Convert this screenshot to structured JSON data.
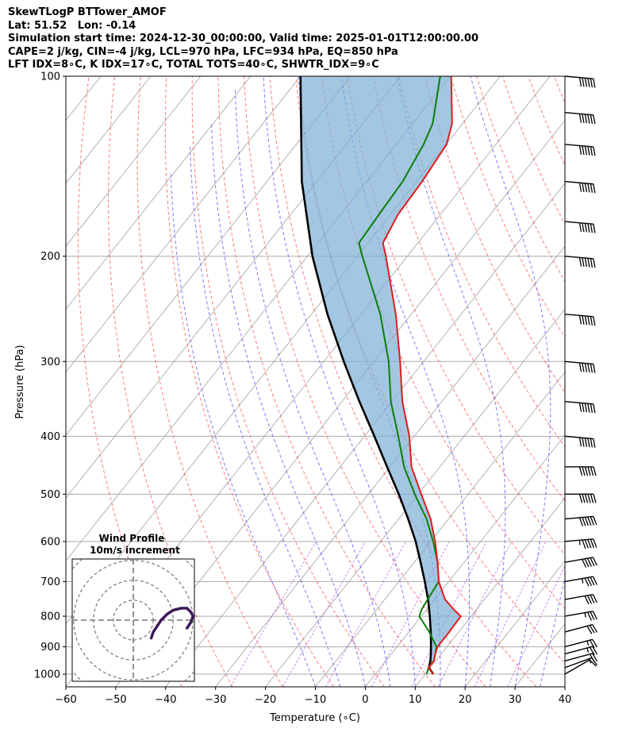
{
  "header": {
    "title": "SkewTLogP BTTower_AMOF",
    "location": "Lat: 51.52   Lon: -0.14",
    "times": "Simulation start time: 2024-12-30_00:00:00, Valid time: 2025-01-01T12:00:00.00",
    "indices1": "CAPE=2 j/kg, CIN=-4 j/kg, LCL=970 hPa, LFC=934 hPa, EQ=850 hPa",
    "indices2": "LFT IDX=8∘C, K IDX=17∘C, TOTAL TOTS=40∘C, SHWTR_IDX=9∘C"
  },
  "chart_data": {
    "type": "line",
    "subtype": "skew-t log-p",
    "xlabel": "Temperature (∘C)",
    "ylabel": "Pressure (hPa)",
    "xlim": [
      -60,
      40
    ],
    "ylim": [
      1050,
      100
    ],
    "yscale": "log",
    "skew_deg_per_decade": 95,
    "x_ticks": [
      -60,
      -50,
      -40,
      -30,
      -20,
      -10,
      0,
      10,
      20,
      30,
      40
    ],
    "y_ticks": [
      1000,
      900,
      800,
      700,
      600,
      500,
      400,
      300,
      200,
      100
    ],
    "grid": true,
    "colors": {
      "temperature": "#e41a1c",
      "dewpoint": "#0a7f0a",
      "parcel": "#000000",
      "cape_fill": "#7fb0d5",
      "isotherm": "#aaaaaa",
      "dry_adiabat": "#ff4d4d",
      "moist_adiabat": "#4d4dff",
      "mixing_ratio": "#9b30d9",
      "wind_profile": "#3b1a5a"
    },
    "series": [
      {
        "key": "temperature",
        "pressure": [
          1000,
          975,
          950,
          925,
          900,
          850,
          800,
          780,
          750,
          700,
          650,
          600,
          550,
          500,
          450,
          400,
          350,
          300,
          250,
          200,
          190,
          170,
          150,
          130,
          120,
          100
        ],
        "values": [
          11.6,
          9.6,
          9.6,
          8.8,
          8.1,
          8.1,
          7.9,
          5.5,
          2.1,
          -2.0,
          -5.3,
          -9.1,
          -13.6,
          -19.4,
          -25.7,
          -31.0,
          -37.9,
          -44.7,
          -53.1,
          -64.3,
          -67.0,
          -68.5,
          -68.9,
          -69.9,
          -72.1,
          -79.8
        ]
      },
      {
        "key": "dewpoint",
        "pressure": [
          1000,
          975,
          950,
          925,
          900,
          850,
          800,
          780,
          750,
          700,
          650,
          600,
          550,
          500,
          450,
          400,
          350,
          300,
          250,
          200,
          190,
          170,
          150,
          130,
          120,
          100
        ],
        "values": [
          10.3,
          9.6,
          9.6,
          8.8,
          7.9,
          4.1,
          -0.4,
          -1.0,
          -1.4,
          -2.0,
          -5.3,
          -9.5,
          -14.4,
          -20.7,
          -27.2,
          -33.2,
          -40.2,
          -47.0,
          -56.2,
          -69.0,
          -71.8,
          -72.3,
          -72.8,
          -74.5,
          -76.0,
          -82.0
        ]
      },
      {
        "key": "parcel",
        "pressure": [
          1000,
          975,
          950,
          925,
          900,
          850,
          800,
          750,
          700,
          650,
          600,
          550,
          500,
          450,
          400,
          350,
          300,
          250,
          200,
          150,
          100
        ],
        "values": [
          11.6,
          9.7,
          8.9,
          7.9,
          6.8,
          4.4,
          1.7,
          -1.3,
          -4.8,
          -8.7,
          -13.0,
          -18.1,
          -23.9,
          -30.6,
          -38.0,
          -46.5,
          -56.0,
          -66.8,
          -79.0,
          -93.0,
          -110.0
        ]
      }
    ],
    "wind_barbs": {
      "pressure": [
        1000,
        975,
        950,
        925,
        900,
        850,
        800,
        750,
        700,
        650,
        600,
        550,
        500,
        450,
        400,
        350,
        300,
        250,
        200,
        175,
        150,
        130,
        115,
        100
      ],
      "speed_kt": [
        10,
        15,
        20,
        25,
        25,
        30,
        35,
        40,
        45,
        50,
        55,
        60,
        60,
        60,
        60,
        60,
        60,
        60,
        60,
        60,
        60,
        60,
        60,
        60
      ],
      "direction_deg": [
        240,
        250,
        255,
        255,
        255,
        255,
        260,
        260,
        260,
        260,
        265,
        265,
        270,
        270,
        275,
        275,
        275,
        275,
        275,
        275,
        275,
        275,
        275,
        275
      ]
    },
    "inset": {
      "title": "Wind Profile",
      "subtitle": "10m/s increment",
      "rings_ms": [
        10,
        20,
        30,
        40
      ],
      "hodograph_u": [
        9,
        10,
        12,
        14,
        17,
        20,
        24,
        27,
        29,
        30,
        29,
        27
      ],
      "hodograph_v": [
        -9,
        -6,
        -3,
        0,
        3,
        5,
        6,
        6,
        4,
        2,
        -1,
        -4
      ]
    }
  }
}
